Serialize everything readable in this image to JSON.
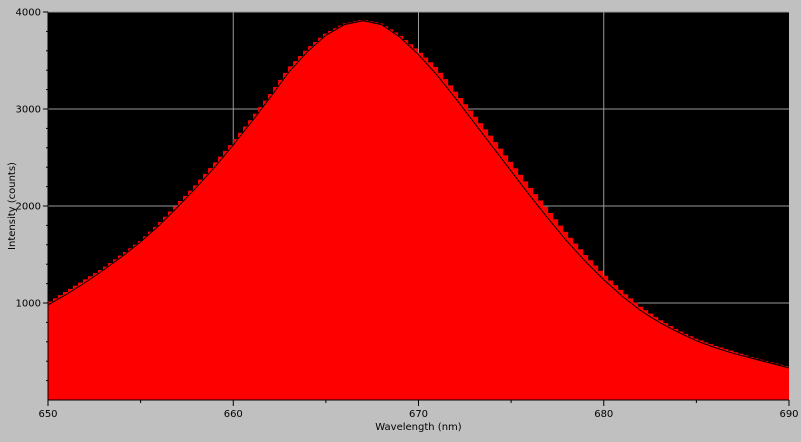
{
  "chart_data": {
    "type": "area",
    "xlabel": "Wavelength (nm)",
    "ylabel": "Intensity (counts)",
    "xlim": [
      650,
      690
    ],
    "ylim": [
      0,
      4000
    ],
    "x_ticks": [
      650,
      660,
      670,
      680,
      690
    ],
    "y_ticks": [
      1000,
      2000,
      3000,
      4000
    ],
    "grid": true,
    "colors": {
      "plot_background": "#000000",
      "fill": "#ff0000",
      "fit_line": "#000000",
      "grid": "#ffffff",
      "frame": "#c0c0c0"
    },
    "series": [
      {
        "style": "stepped-fill",
        "x": [
          650,
          651,
          652,
          653,
          654,
          655,
          656,
          657,
          658,
          659,
          660,
          661,
          662,
          663,
          664,
          665,
          666,
          667,
          668,
          669,
          670,
          671,
          672,
          673,
          674,
          675,
          676,
          677,
          678,
          679,
          680,
          681,
          682,
          683,
          684,
          685,
          686,
          687,
          688,
          689,
          690
        ],
        "values": [
          1000,
          1120,
          1240,
          1360,
          1500,
          1640,
          1820,
          2020,
          2220,
          2440,
          2660,
          2900,
          3150,
          3420,
          3620,
          3780,
          3880,
          3920,
          3880,
          3760,
          3600,
          3420,
          3180,
          2940,
          2700,
          2450,
          2200,
          1960,
          1720,
          1500,
          1300,
          1120,
          960,
          830,
          720,
          630,
          560,
          500,
          440,
          390,
          340
        ]
      },
      {
        "style": "line",
        "x": [
          650,
          651,
          652,
          653,
          654,
          655,
          656,
          657,
          658,
          659,
          660,
          661,
          662,
          663,
          664,
          665,
          666,
          667,
          668,
          669,
          670,
          671,
          672,
          673,
          674,
          675,
          676,
          677,
          678,
          679,
          680,
          681,
          682,
          683,
          684,
          685,
          686,
          687,
          688,
          689,
          690
        ],
        "values": [
          980,
          1090,
          1210,
          1340,
          1480,
          1630,
          1800,
          1990,
          2190,
          2400,
          2630,
          2870,
          3120,
          3380,
          3590,
          3760,
          3870,
          3910,
          3870,
          3740,
          3560,
          3350,
          3110,
          2860,
          2610,
          2360,
          2110,
          1870,
          1640,
          1430,
          1240,
          1070,
          920,
          800,
          700,
          610,
          540,
          480,
          430,
          380,
          330
        ]
      }
    ]
  }
}
